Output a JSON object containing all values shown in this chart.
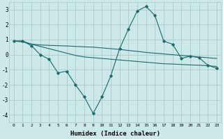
{
  "xlabel": "Humidex (Indice chaleur)",
  "bg_color": "#cce8e8",
  "grid_color": "#aacccc",
  "line_color": "#1a6b6b",
  "x": [
    0,
    1,
    2,
    3,
    4,
    5,
    6,
    7,
    8,
    9,
    10,
    11,
    12,
    13,
    14,
    15,
    16,
    17,
    18,
    19,
    20,
    21,
    22,
    23
  ],
  "line1": [
    0.9,
    0.9,
    0.6,
    0.0,
    -0.3,
    -1.2,
    -1.1,
    -2.0,
    -2.8,
    -3.9,
    -2.8,
    -1.4,
    0.4,
    1.7,
    2.9,
    3.2,
    2.6,
    0.9,
    0.7,
    -0.25,
    -0.1,
    -0.2,
    -0.7,
    -0.9
  ],
  "line2": [
    0.9,
    0.9,
    0.7,
    0.65,
    0.62,
    0.6,
    0.58,
    0.55,
    0.52,
    0.5,
    0.45,
    0.4,
    0.35,
    0.28,
    0.22,
    0.15,
    0.1,
    0.05,
    0.0,
    -0.05,
    -0.1,
    -0.15,
    -0.2,
    -0.25
  ],
  "line3": [
    0.9,
    0.85,
    0.7,
    0.55,
    0.4,
    0.25,
    0.1,
    -0.05,
    -0.15,
    -0.2,
    -0.25,
    -0.3,
    -0.35,
    -0.4,
    -0.45,
    -0.5,
    -0.55,
    -0.6,
    -0.62,
    -0.65,
    -0.68,
    -0.7,
    -0.73,
    -0.78
  ],
  "ylim": [
    -4.5,
    3.5
  ],
  "xlim": [
    -0.5,
    23.5
  ],
  "yticks": [
    -4,
    -3,
    -2,
    -1,
    0,
    1,
    2,
    3
  ],
  "xticks": [
    0,
    1,
    2,
    3,
    4,
    5,
    6,
    7,
    8,
    9,
    10,
    11,
    12,
    13,
    14,
    15,
    16,
    17,
    18,
    19,
    20,
    21,
    22,
    23
  ]
}
